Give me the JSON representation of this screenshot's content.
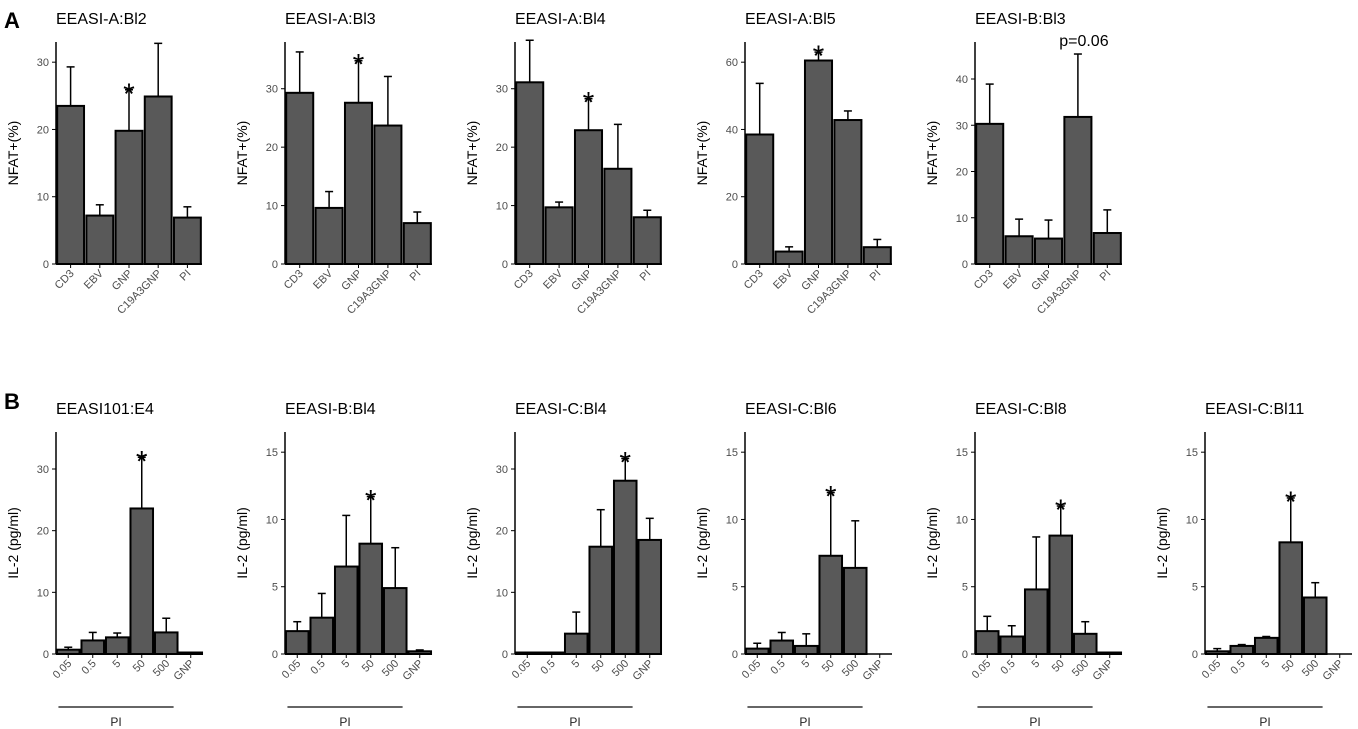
{
  "colors": {
    "bar": "#595959",
    "outline": "#000000",
    "axis": "#000000",
    "tick_text": "#4d4d4d"
  },
  "panel_labels": {
    "a": "A",
    "b": "B"
  },
  "chart_data": [
    {
      "type": "bar",
      "title": "EEASI-A:Bl2",
      "ylabel": "NFAT+(%)",
      "ylim": [
        0,
        33
      ],
      "yticks": [
        0,
        10,
        20,
        30
      ],
      "categories": [
        "CD3",
        "EBV",
        "GNP",
        "C19A3GNP",
        "PI"
      ],
      "values": [
        23.5,
        7.2,
        19.8,
        24.9,
        6.9
      ],
      "errors": [
        5.8,
        1.6,
        6.1,
        7.9,
        1.6
      ],
      "annotations": [
        {
          "index": 2,
          "text": "*"
        }
      ]
    },
    {
      "type": "bar",
      "title": "EEASI-A:Bl3",
      "ylabel": "NFAT+(%)",
      "ylim": [
        0,
        38
      ],
      "yticks": [
        0,
        10,
        20,
        30
      ],
      "categories": [
        "CD3",
        "EBV",
        "GNP",
        "C19A3GNP",
        "PI"
      ],
      "values": [
        29.3,
        9.6,
        27.6,
        23.7,
        7.0
      ],
      "errors": [
        7.0,
        2.8,
        7.2,
        8.4,
        1.9
      ],
      "annotations": [
        {
          "index": 2,
          "text": "*"
        }
      ]
    },
    {
      "type": "bar",
      "title": "EEASI-A:Bl4",
      "ylabel": "NFAT+(%)",
      "ylim": [
        0,
        38
      ],
      "yticks": [
        0,
        10,
        20,
        30
      ],
      "categories": [
        "CD3",
        "EBV",
        "GNP",
        "C19A3GNP",
        "PI"
      ],
      "values": [
        31.1,
        9.7,
        22.9,
        16.3,
        8.0
      ],
      "errors": [
        7.2,
        0.9,
        5.4,
        7.6,
        1.2
      ],
      "annotations": [
        {
          "index": 2,
          "text": "*"
        }
      ]
    },
    {
      "type": "bar",
      "title": "EEASI-A:Bl5",
      "ylabel": "NFAT+(%)",
      "ylim": [
        0,
        66
      ],
      "yticks": [
        0,
        20,
        40,
        60
      ],
      "categories": [
        "CD3",
        "EBV",
        "GNP",
        "C19A3GNP",
        "PI"
      ],
      "values": [
        38.5,
        3.7,
        60.5,
        42.8,
        5.0
      ],
      "errors": [
        15.2,
        1.4,
        2.5,
        2.7,
        2.3
      ],
      "annotations": [
        {
          "index": 2,
          "text": "*"
        }
      ]
    },
    {
      "type": "bar",
      "title": "EEASI-B:Bl3",
      "ylabel": "NFAT+(%)",
      "ylim": [
        0,
        48
      ],
      "yticks": [
        0,
        10,
        20,
        30,
        40
      ],
      "categories": [
        "CD3",
        "EBV",
        "GNP",
        "C19A3GNP",
        "PI"
      ],
      "values": [
        30.3,
        6.0,
        5.5,
        31.8,
        6.7
      ],
      "errors": [
        8.6,
        3.7,
        4.0,
        13.6,
        5.0
      ],
      "annotations": [
        {
          "index": 3,
          "text": "p=0.06"
        }
      ]
    },
    {
      "type": "bar",
      "title": "EEASI101:E4",
      "ylabel": "IL-2 (pg/ml)",
      "ylim": [
        0,
        36
      ],
      "yticks": [
        0,
        10,
        20,
        30
      ],
      "categories": [
        "0.05",
        "0.5",
        "5",
        "50",
        "500",
        "GNP"
      ],
      "group_label": "PI",
      "values": [
        0.7,
        2.2,
        2.7,
        23.6,
        3.5,
        0.2
      ],
      "errors": [
        0.4,
        1.3,
        0.7,
        8.3,
        2.3,
        0.0
      ],
      "annotations": [
        {
          "index": 3,
          "text": "*"
        }
      ]
    },
    {
      "type": "bar",
      "title": "EEASI-B:Bl4",
      "ylabel": "IL-2 (pg/ml)",
      "ylim": [
        0,
        16.5
      ],
      "yticks": [
        0,
        5,
        10,
        15
      ],
      "categories": [
        "0.05",
        "0.5",
        "5",
        "50",
        "500",
        "GNP"
      ],
      "group_label": "PI",
      "values": [
        1.7,
        2.7,
        6.5,
        8.2,
        4.9,
        0.2
      ],
      "errors": [
        0.7,
        1.8,
        3.8,
        3.5,
        3.0,
        0.1
      ],
      "annotations": [
        {
          "index": 3,
          "text": "*"
        }
      ]
    },
    {
      "type": "bar",
      "title": "EEASI-C:Bl4",
      "ylabel": "IL-2 (pg/ml)",
      "ylim": [
        0,
        36
      ],
      "yticks": [
        0,
        10,
        20,
        30
      ],
      "categories": [
        "0.05",
        "0.5",
        "5",
        "50",
        "500",
        "GNP"
      ],
      "group_label": "PI",
      "values": [
        0,
        0,
        3.3,
        17.4,
        28.1,
        18.5
      ],
      "errors": [
        0,
        0,
        3.5,
        6.0,
        3.6,
        3.5
      ],
      "annotations": [
        {
          "index": 4,
          "text": "*"
        }
      ]
    },
    {
      "type": "bar",
      "title": "EEASI-C:Bl6",
      "ylabel": "IL-2 (pg/ml)",
      "ylim": [
        0,
        16.5
      ],
      "yticks": [
        0,
        5,
        10,
        15
      ],
      "categories": [
        "0.05",
        "0.5",
        "5",
        "50",
        "500",
        "GNP"
      ],
      "group_label": "PI",
      "values": [
        0.4,
        1.0,
        0.6,
        7.3,
        6.4,
        null
      ],
      "errors": [
        0.4,
        0.6,
        0.9,
        4.7,
        3.5,
        null
      ],
      "annotations": [
        {
          "index": 3,
          "text": "*"
        }
      ]
    },
    {
      "type": "bar",
      "title": "EEASI-C:Bl8",
      "ylabel": "IL-2 (pg/ml)",
      "ylim": [
        0,
        16.5
      ],
      "yticks": [
        0,
        5,
        10,
        15
      ],
      "categories": [
        "0.05",
        "0.5",
        "5",
        "50",
        "500",
        "GNP"
      ],
      "group_label": "PI",
      "values": [
        1.7,
        1.3,
        4.8,
        8.8,
        1.5,
        0.0
      ],
      "errors": [
        1.1,
        0.8,
        3.9,
        2.2,
        0.9,
        0.0
      ],
      "annotations": [
        {
          "index": 3,
          "text": "*"
        }
      ]
    },
    {
      "type": "bar",
      "title": "EEASI-C:Bl11",
      "ylabel": "IL-2 (pg/ml)",
      "ylim": [
        0,
        16.5
      ],
      "yticks": [
        0,
        5,
        10,
        15
      ],
      "categories": [
        "0.05",
        "0.5",
        "5",
        "50",
        "500",
        "GNP"
      ],
      "group_label": "PI",
      "values": [
        0.2,
        0.6,
        1.2,
        8.3,
        4.2,
        null
      ],
      "errors": [
        0.2,
        0.1,
        0.1,
        3.3,
        1.1,
        null
      ],
      "annotations": [
        {
          "index": 3,
          "text": "*"
        }
      ]
    }
  ]
}
